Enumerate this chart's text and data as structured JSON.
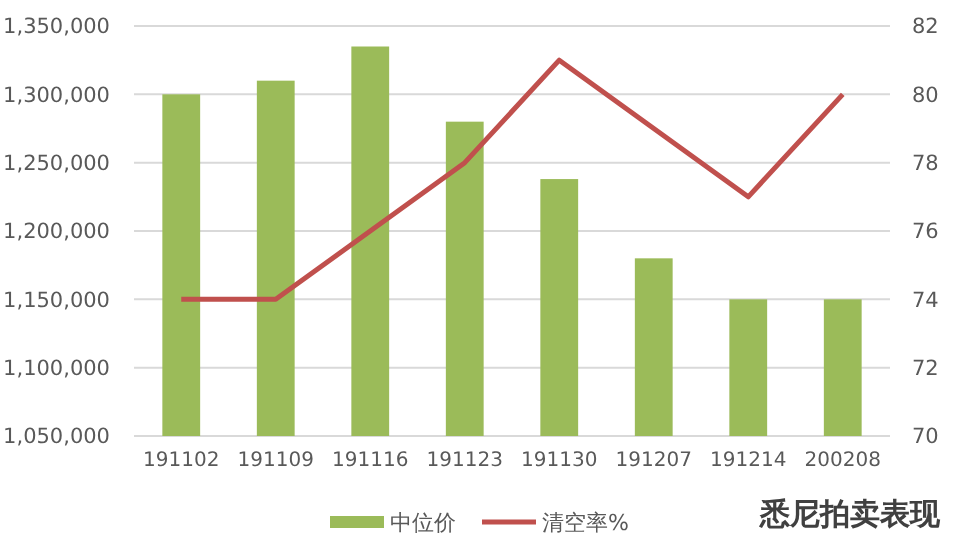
{
  "chart_data": {
    "type": "bar",
    "title": "悉尼拍卖表现",
    "categories": [
      "191102",
      "191109",
      "191116",
      "191123",
      "191130",
      "191207",
      "191214",
      "200208"
    ],
    "series": [
      {
        "name": "中位价",
        "color": "#9bbb59",
        "values": [
          1300000,
          1310000,
          1335000,
          1280000,
          1238000,
          1180000,
          1150000,
          1150000
        ]
      },
      {
        "name": "清空率%",
        "type": "line",
        "axis": "y2",
        "color": "#c0504d",
        "values": [
          74,
          74,
          76,
          78,
          81,
          79,
          77,
          80
        ]
      }
    ],
    "ylim": [
      1050000,
      1350000
    ],
    "yticks": [
      {
        "value": 1050000,
        "label": "1,050,000"
      },
      {
        "value": 1100000,
        "label": "1,100,000"
      },
      {
        "value": 1150000,
        "label": "1,150,000"
      },
      {
        "value": 1200000,
        "label": "1,200,000"
      },
      {
        "value": 1250000,
        "label": "1,250,000"
      },
      {
        "value": 1300000,
        "label": "1,300,000"
      },
      {
        "value": 1350000,
        "label": "1,350,000"
      }
    ],
    "y2lim": [
      70,
      82
    ],
    "y2ticks": [
      70,
      72,
      74,
      76,
      78,
      80,
      82
    ],
    "grid": "y",
    "legend": "bottom",
    "marker": "none",
    "line_style": "solid"
  }
}
